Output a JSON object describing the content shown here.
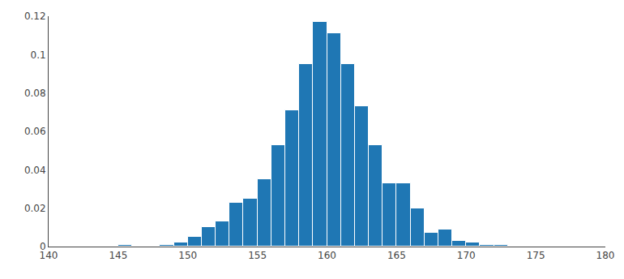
{
  "chart_data": {
    "type": "histogram",
    "bins": [
      140,
      141,
      142,
      143,
      144,
      145,
      146,
      147,
      148,
      149,
      150,
      151,
      152,
      153,
      154,
      155,
      156,
      157,
      158,
      159,
      160,
      161,
      162,
      163,
      164,
      165,
      166,
      167,
      168,
      169,
      170,
      171,
      172,
      173,
      174,
      175,
      176,
      177,
      178,
      179,
      180
    ],
    "values": [
      0.0,
      0.0,
      0.0,
      0.0,
      0.0,
      0.001,
      0.0,
      0.0,
      0.001,
      0.002,
      0.005,
      0.01,
      0.013,
      0.023,
      0.025,
      0.035,
      0.053,
      0.071,
      0.095,
      0.117,
      0.111,
      0.095,
      0.073,
      0.053,
      0.033,
      0.033,
      0.02,
      0.007,
      0.009,
      0.003,
      0.002,
      0.001,
      0.001,
      0.0,
      0.0,
      0.0,
      0.0,
      0.0,
      0.0,
      0.0
    ],
    "xlim": [
      140,
      180
    ],
    "ylim": [
      0,
      0.12
    ],
    "xticks": [
      140,
      145,
      150,
      155,
      160,
      165,
      170,
      175,
      180
    ],
    "yticks": [
      0,
      0.02,
      0.04,
      0.06,
      0.08,
      0.1,
      0.12
    ],
    "grid": false
  }
}
